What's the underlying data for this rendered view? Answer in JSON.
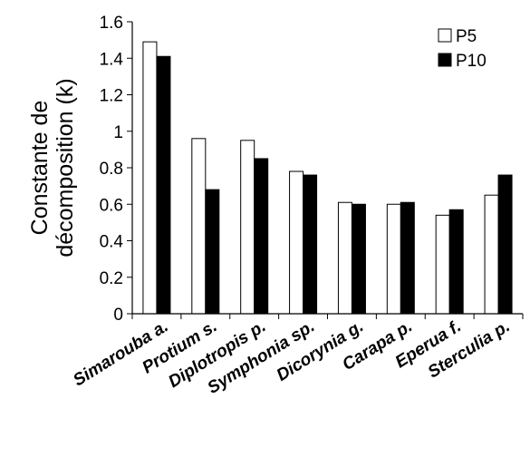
{
  "chart_data": {
    "type": "bar",
    "ylabel_line1": "Constante de",
    "ylabel_line2": "décomposition (k)",
    "xlabel": "",
    "ylim": [
      0,
      1.6
    ],
    "yticks": [
      "0",
      "0.2",
      "0.4",
      "0.6",
      "0.8",
      "1",
      "1.2",
      "1.4",
      "1.6"
    ],
    "grid": false,
    "legend_placement": "top-right",
    "categories": [
      "Simarouba a.",
      "Protium s.",
      "Diplotropis p.",
      "Symphonia sp.",
      "Dicorynia g.",
      "Carapa p.",
      "Eperua f.",
      "Sterculia p."
    ],
    "series": [
      {
        "name": "P5",
        "fill": "#ffffff",
        "values": [
          1.49,
          0.96,
          0.95,
          0.78,
          0.61,
          0.6,
          0.54,
          0.65
        ]
      },
      {
        "name": "P10",
        "fill": "#000000",
        "values": [
          1.41,
          0.68,
          0.85,
          0.76,
          0.6,
          0.61,
          0.57,
          0.76
        ]
      }
    ]
  }
}
